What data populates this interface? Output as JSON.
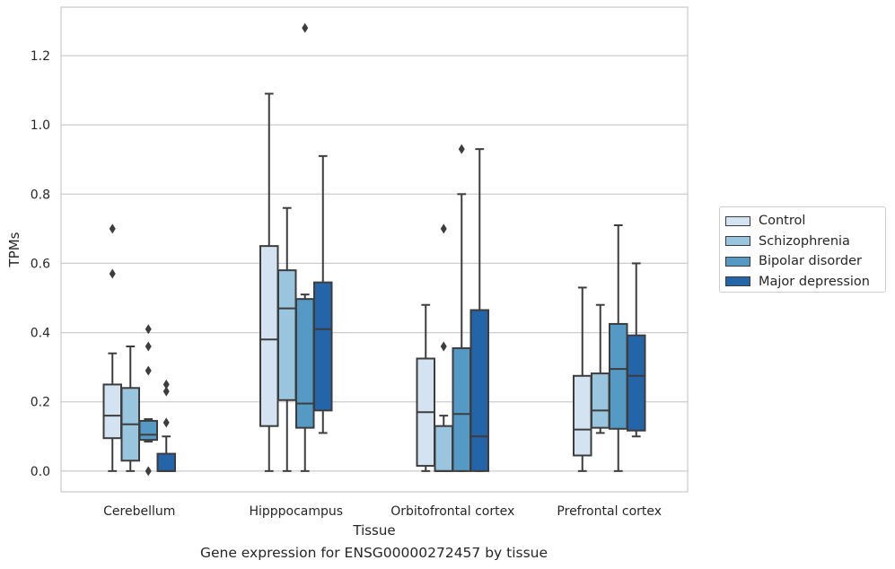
{
  "chart_data": {
    "type": "box",
    "title": "",
    "caption": "Gene expression for ENSG00000272457 by tissue",
    "xlabel": "Tissue",
    "ylabel": "TPMs",
    "ylim": [
      -0.06,
      1.34
    ],
    "yticks": [
      "0.0",
      "0.2",
      "0.4",
      "0.6",
      "0.8",
      "1.0",
      "1.2"
    ],
    "ytick_values": [
      0,
      0.2,
      0.4,
      0.6,
      0.8,
      1.0,
      1.2
    ],
    "grid": "horizontal",
    "legend_placement": "right",
    "categories": [
      "Cerebellum",
      "Hipppocampus",
      "Orbitofrontal cortex",
      "Prefrontal cortex"
    ],
    "series": [
      {
        "name": "Control",
        "color": "#d3e3f2",
        "boxes": [
          {
            "whislo": 0.0,
            "q1": 0.095,
            "med": 0.16,
            "q3": 0.25,
            "whishi": 0.34,
            "fliers": [
              0.57,
              0.7
            ]
          },
          {
            "whislo": 0.0,
            "q1": 0.13,
            "med": 0.38,
            "q3": 0.65,
            "whishi": 1.09,
            "fliers": []
          },
          {
            "whislo": 0.0,
            "q1": 0.015,
            "med": 0.17,
            "q3": 0.325,
            "whishi": 0.48,
            "fliers": []
          },
          {
            "whislo": 0.0,
            "q1": 0.045,
            "med": 0.12,
            "q3": 0.275,
            "whishi": 0.53,
            "fliers": []
          }
        ]
      },
      {
        "name": "Schizophrenia",
        "color": "#9ac5de",
        "boxes": [
          {
            "whislo": 0.0,
            "q1": 0.03,
            "med": 0.135,
            "q3": 0.24,
            "whishi": 0.36,
            "fliers": []
          },
          {
            "whislo": 0.0,
            "q1": 0.205,
            "med": 0.47,
            "q3": 0.58,
            "whishi": 0.76,
            "fliers": []
          },
          {
            "whislo": 0.0,
            "q1": 0.0,
            "med": 0.0,
            "q3": 0.13,
            "whishi": 0.16,
            "fliers": [
              0.36,
              0.7
            ]
          },
          {
            "whislo": 0.11,
            "q1": 0.125,
            "med": 0.175,
            "q3": 0.282,
            "whishi": 0.48,
            "fliers": []
          }
        ]
      },
      {
        "name": "Bipolar disorder",
        "color": "#5599c5",
        "boxes": [
          {
            "whislo": 0.085,
            "q1": 0.09,
            "med": 0.105,
            "q3": 0.145,
            "whishi": 0.15,
            "fliers": [
              0.0,
              0.29,
              0.36,
              0.41
            ]
          },
          {
            "whislo": 0.0,
            "q1": 0.125,
            "med": 0.195,
            "q3": 0.497,
            "whishi": 0.51,
            "fliers": [
              1.28
            ]
          },
          {
            "whislo": 0.0,
            "q1": 0.0,
            "med": 0.165,
            "q3": 0.355,
            "whishi": 0.8,
            "fliers": [
              0.93
            ]
          },
          {
            "whislo": 0.0,
            "q1": 0.122,
            "med": 0.295,
            "q3": 0.425,
            "whishi": 0.71,
            "fliers": []
          }
        ]
      },
      {
        "name": "Major depression",
        "color": "#2464a9",
        "boxes": [
          {
            "whislo": 0.0,
            "q1": 0.0,
            "med": 0.0,
            "q3": 0.05,
            "whishi": 0.1,
            "fliers": [
              0.14,
              0.23,
              0.25
            ]
          },
          {
            "whislo": 0.11,
            "q1": 0.175,
            "med": 0.41,
            "q3": 0.545,
            "whishi": 0.91,
            "fliers": []
          },
          {
            "whislo": 0.0,
            "q1": 0.0,
            "med": 0.1,
            "q3": 0.465,
            "whishi": 0.93,
            "fliers": []
          },
          {
            "whislo": 0.1,
            "q1": 0.117,
            "med": 0.275,
            "q3": 0.392,
            "whishi": 0.6,
            "fliers": []
          }
        ]
      }
    ]
  }
}
